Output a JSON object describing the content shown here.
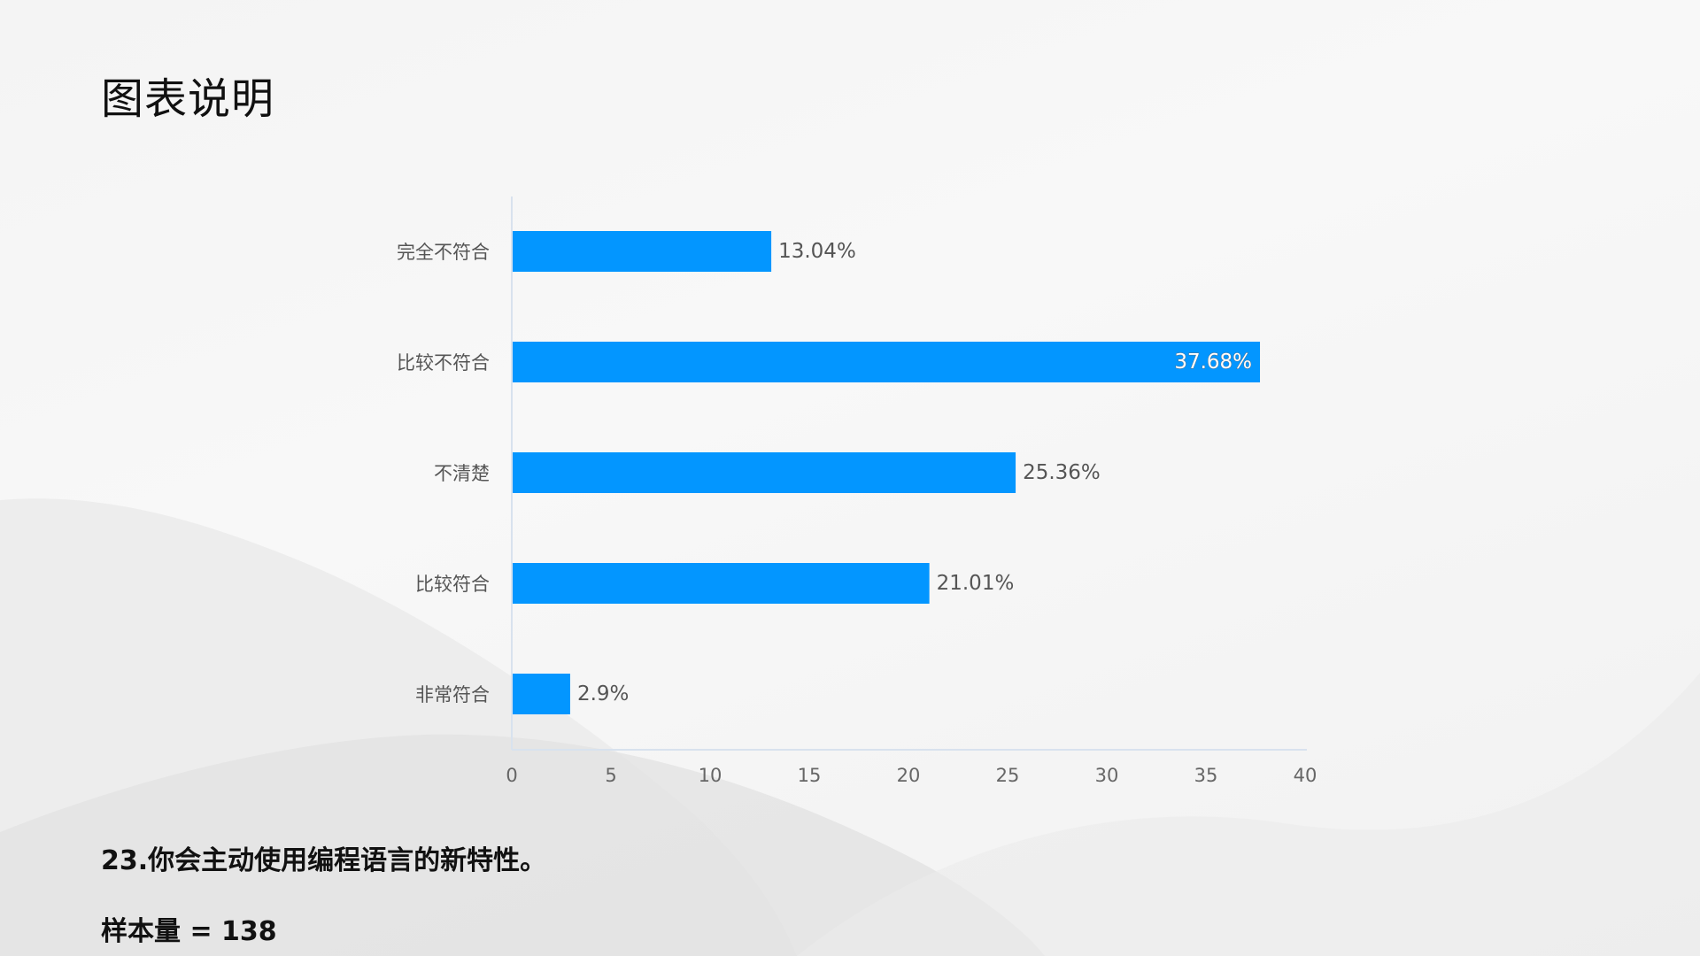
{
  "slide": {
    "title": "图表说明",
    "question": "23.你会主动使用编程语言的新特性。",
    "sample_size": "样本量 = 138"
  },
  "colors": {
    "bar": "#0396ff",
    "axis": "#d8e2ee",
    "background": "#f5f5f5"
  },
  "chart_data": {
    "type": "bar",
    "orientation": "horizontal",
    "title": "",
    "xlabel": "",
    "ylabel": "",
    "categories": [
      "完全不符合",
      "比较不符合",
      "不清楚",
      "比较符合",
      "非常符合"
    ],
    "values": [
      13.04,
      37.68,
      25.36,
      21.01,
      2.9
    ],
    "value_labels": [
      "13.04%",
      "37.68%",
      "25.36%",
      "21.01%",
      "2.9%"
    ],
    "xlim": [
      0,
      40
    ],
    "xticks": [
      0,
      5,
      10,
      15,
      20,
      25,
      30,
      35,
      40
    ],
    "grid": false,
    "legend": "none"
  }
}
